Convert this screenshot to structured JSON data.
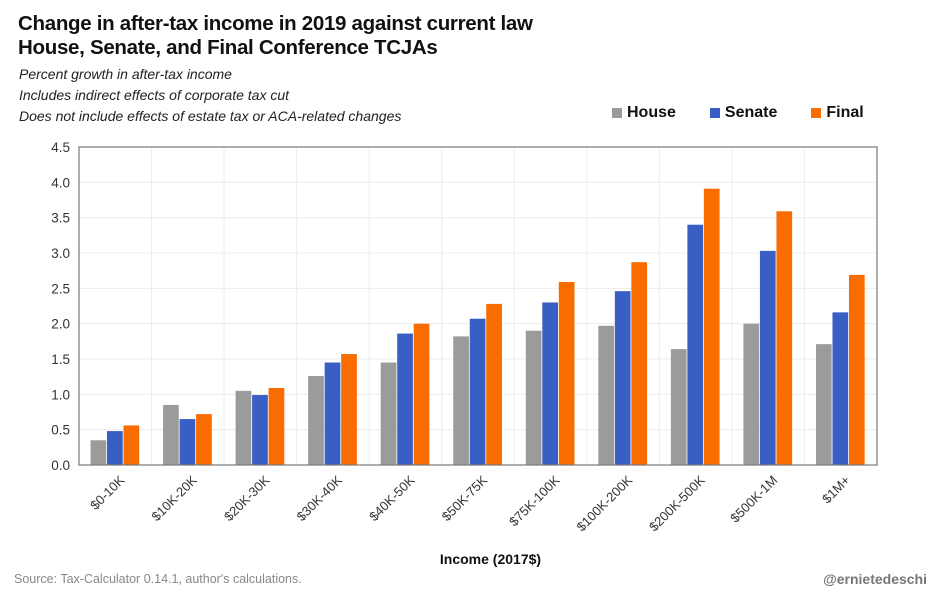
{
  "chart_data": {
    "type": "bar",
    "title": "Change in after-tax income in 2019 against current law",
    "title_line2": "House, Senate, and Final Conference TCJAs",
    "subtitle_lines": [
      "Percent growth in after-tax income",
      "Includes indirect effects of corporate tax cut",
      "Does not include effects of estate tax or ACA-related changes"
    ],
    "xlabel": "Income (2017$)",
    "ylabel": "",
    "ylim": [
      0,
      4.5
    ],
    "yticks": [
      "0.0",
      "0.5",
      "1.0",
      "1.5",
      "2.0",
      "2.5",
      "3.0",
      "3.5",
      "4.0",
      "4.5"
    ],
    "ytick_values": [
      0,
      0.5,
      1.0,
      1.5,
      2.0,
      2.5,
      3.0,
      3.5,
      4.0,
      4.5
    ],
    "grid": true,
    "legend_position": "top-right",
    "categories": [
      "$0-10K",
      "$10K-20K",
      "$20K-30K",
      "$30K-40K",
      "$40K-50K",
      "$50K-75K",
      "$75K-100K",
      "$100K-200K",
      "$200K-500K",
      "$500K-1M",
      "$1M+"
    ],
    "series": [
      {
        "name": "House",
        "color": "#9b9b9b",
        "values": [
          0.35,
          0.85,
          1.05,
          1.26,
          1.45,
          1.82,
          1.9,
          1.97,
          1.64,
          2.0,
          1.71
        ]
      },
      {
        "name": "Senate",
        "color": "#3a5fc4",
        "values": [
          0.48,
          0.65,
          0.99,
          1.45,
          1.86,
          2.07,
          2.3,
          2.46,
          3.4,
          3.03,
          2.16
        ]
      },
      {
        "name": "Final",
        "color": "#f96d00",
        "values": [
          0.56,
          0.72,
          1.09,
          1.57,
          2.0,
          2.28,
          2.59,
          2.87,
          3.91,
          3.59,
          2.69
        ]
      }
    ]
  },
  "footer": {
    "source": "Source: Tax-Calculator 0.14.1, author's calculations.",
    "handle": "@ernietedeschi"
  }
}
